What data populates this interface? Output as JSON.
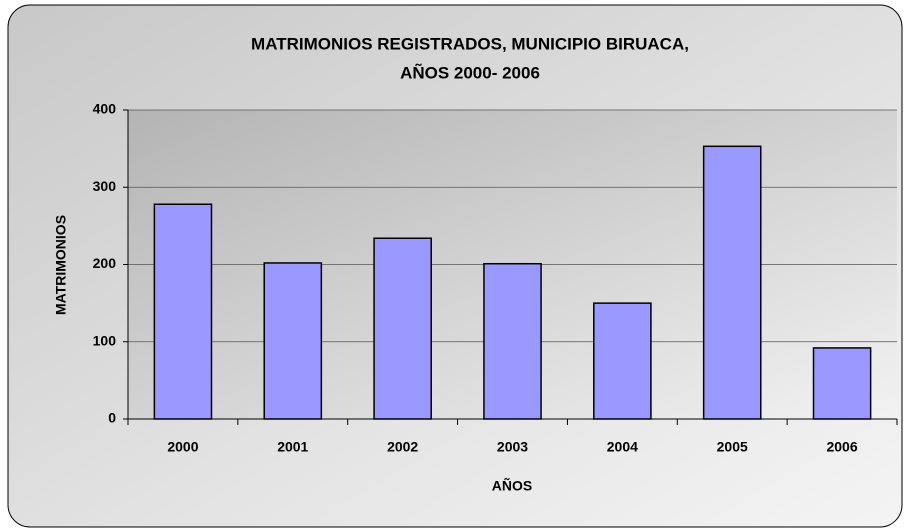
{
  "chart_data": {
    "type": "bar",
    "title": [
      "MATRIMONIOS REGISTRADOS, MUNICIPIO BIRUACA,",
      "AÑOS 2000- 2006"
    ],
    "x_label": "AÑOS",
    "y_label": "MATRIMONIOS",
    "categories": [
      "2000",
      "2001",
      "2002",
      "2003",
      "2004",
      "2005",
      "2006"
    ],
    "values": [
      278,
      202,
      234,
      201,
      150,
      353,
      92
    ],
    "color": "#9999ff",
    "ylim": [
      0,
      400
    ],
    "yticks": [
      0,
      100,
      200,
      300,
      400
    ],
    "grid": true
  }
}
